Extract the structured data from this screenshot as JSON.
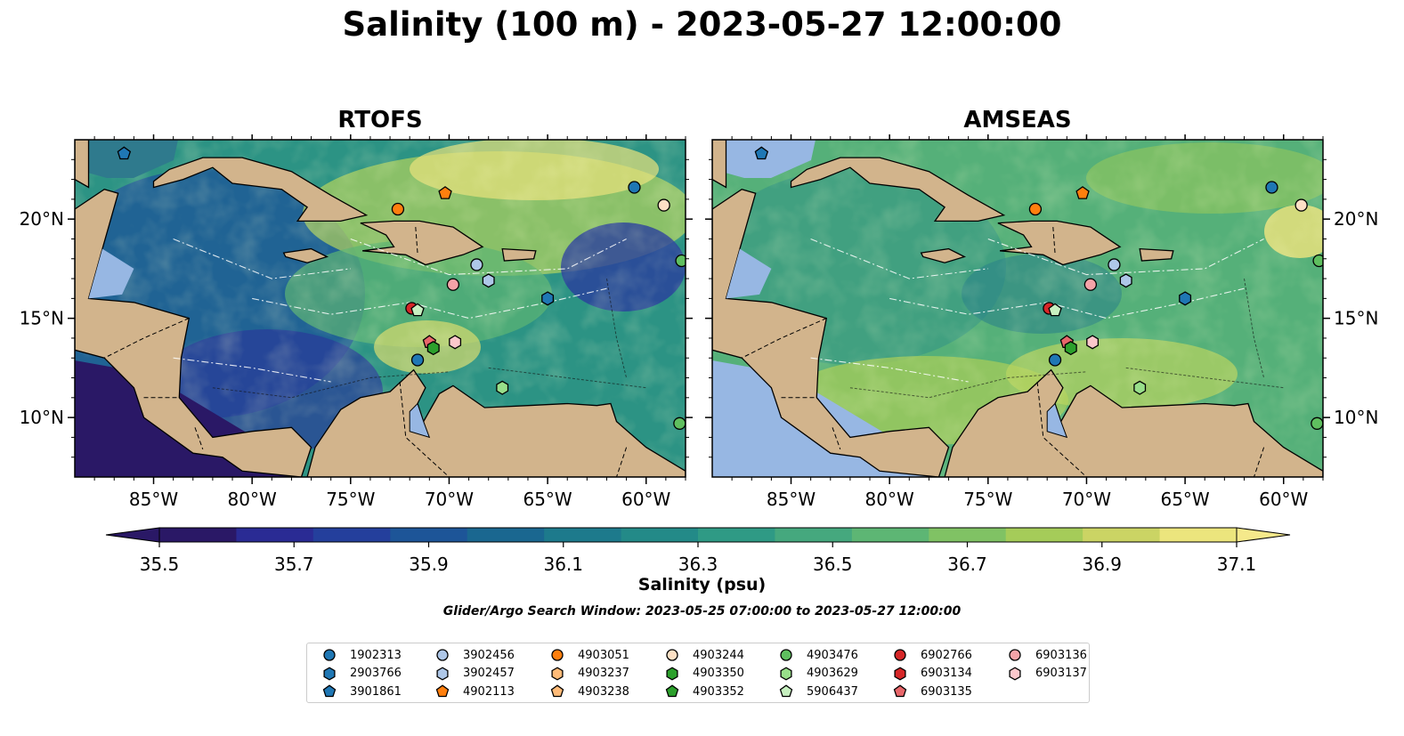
{
  "title": "Salinity (100 m) - 2023-05-27 12:00:00",
  "chart_data": [
    {
      "type": "heatmap",
      "title": "RTOFS",
      "xticks": [
        "85°W",
        "80°W",
        "75°W",
        "70°W",
        "65°W",
        "60°W"
      ],
      "yticks": [
        "20°N",
        "15°N",
        "10°N"
      ],
      "xlim": [
        -89,
        -58
      ],
      "ylim": [
        7,
        24
      ],
      "field_description": "ocean salinity at 100 m; mostly 36.0–36.6 psu in the central Caribbean with high values (~37.0) near Greater Antilles and Atlantic, low values (~35.5–35.8) in the western Caribbean and Pacific"
    },
    {
      "type": "heatmap",
      "title": "AMSEAS",
      "xticks": [
        "85°W",
        "80°W",
        "75°W",
        "70°W",
        "65°W",
        "60°W"
      ],
      "yticks": [
        "20°N",
        "15°N",
        "10°N"
      ],
      "xlim": [
        -89,
        -58
      ],
      "ylim": [
        7,
        24
      ],
      "field_description": "ocean salinity at 100 m; generally 36.3–36.9 psu with higher values along South America, Pacific masked"
    }
  ],
  "colorbar": {
    "label": "Salinity (psu)",
    "ticks": [
      "35.5",
      "35.7",
      "35.9",
      "36.1",
      "36.3",
      "36.5",
      "36.7",
      "36.9",
      "37.1"
    ],
    "min": 35.5,
    "max": 37.1,
    "colors": [
      "#2a1866",
      "#2a2b94",
      "#243f9c",
      "#1d5598",
      "#1a6790",
      "#1d7a8c",
      "#238a88",
      "#2f9a85",
      "#45a87e",
      "#5db674",
      "#80c264",
      "#a5cc59",
      "#cbd464",
      "#ece57d"
    ]
  },
  "search_window": "Glider/Argo Search Window: 2023-05-25 07:00:00 to 2023-05-27 12:00:00",
  "legend": [
    {
      "id": "1902313",
      "color": "#1f77b4",
      "marker": "circle"
    },
    {
      "id": "2903766",
      "color": "#1f77b4",
      "marker": "hexagon"
    },
    {
      "id": "3901861",
      "color": "#1f77b4",
      "marker": "pentagon"
    },
    {
      "id": "3902456",
      "color": "#aec7e8",
      "marker": "circle"
    },
    {
      "id": "3902457",
      "color": "#aec7e8",
      "marker": "hexagon"
    },
    {
      "id": "4902113",
      "color": "#ff7f0e",
      "marker": "pentagon"
    },
    {
      "id": "4903051",
      "color": "#ff7f0e",
      "marker": "circle"
    },
    {
      "id": "4903237",
      "color": "#ffbb78",
      "marker": "hexagon"
    },
    {
      "id": "4903238",
      "color": "#ffbb78",
      "marker": "pentagon"
    },
    {
      "id": "4903244",
      "color": "#fde0c5",
      "marker": "circle"
    },
    {
      "id": "4903350",
      "color": "#2ca02c",
      "marker": "hexagon"
    },
    {
      "id": "4903352",
      "color": "#2ca02c",
      "marker": "pentagon"
    },
    {
      "id": "4903476",
      "color": "#5fbf5f",
      "marker": "circle"
    },
    {
      "id": "4903629",
      "color": "#98df8a",
      "marker": "hexagon"
    },
    {
      "id": "5906437",
      "color": "#c7f0c0",
      "marker": "pentagon"
    },
    {
      "id": "6902766",
      "color": "#d62728",
      "marker": "circle"
    },
    {
      "id": "6903134",
      "color": "#d62728",
      "marker": "hexagon"
    },
    {
      "id": "6903135",
      "color": "#e8666a",
      "marker": "pentagon"
    },
    {
      "id": "6903136",
      "color": "#f4a3a8",
      "marker": "circle"
    },
    {
      "id": "6903137",
      "color": "#fcc8cc",
      "marker": "hexagon"
    }
  ],
  "floats": [
    {
      "id": "3901861",
      "lon": -86.5,
      "lat": 23.3
    },
    {
      "id": "1902313",
      "lon": -60.6,
      "lat": 21.6
    },
    {
      "id": "4903244",
      "lon": -59.1,
      "lat": 20.7
    },
    {
      "id": "4903051",
      "lon": -72.6,
      "lat": 20.5
    },
    {
      "id": "4902113",
      "lon": -70.2,
      "lat": 21.3
    },
    {
      "id": "4903476",
      "lon": -58.2,
      "lat": 17.9
    },
    {
      "id": "3902456",
      "lon": -68.6,
      "lat": 17.7
    },
    {
      "id": "3902457",
      "lon": -68.0,
      "lat": 16.9
    },
    {
      "id": "6903136",
      "lon": -69.8,
      "lat": 16.7
    },
    {
      "id": "2903766",
      "lon": -65.0,
      "lat": 16.0
    },
    {
      "id": "6902766",
      "lon": -71.9,
      "lat": 15.5
    },
    {
      "id": "5906437",
      "lon": -71.6,
      "lat": 15.4
    },
    {
      "id": "6903135",
      "lon": -71.0,
      "lat": 13.8
    },
    {
      "id": "4903350",
      "lon": -70.8,
      "lat": 13.5
    },
    {
      "id": "6903137",
      "lon": -69.7,
      "lat": 13.8
    },
    {
      "id": "1902313b",
      "lon": -71.6,
      "lat": 12.9
    },
    {
      "id": "4903629",
      "lon": -67.3,
      "lat": 11.5
    },
    {
      "id": "4903476b",
      "lon": -58.3,
      "lat": 9.7
    }
  ]
}
